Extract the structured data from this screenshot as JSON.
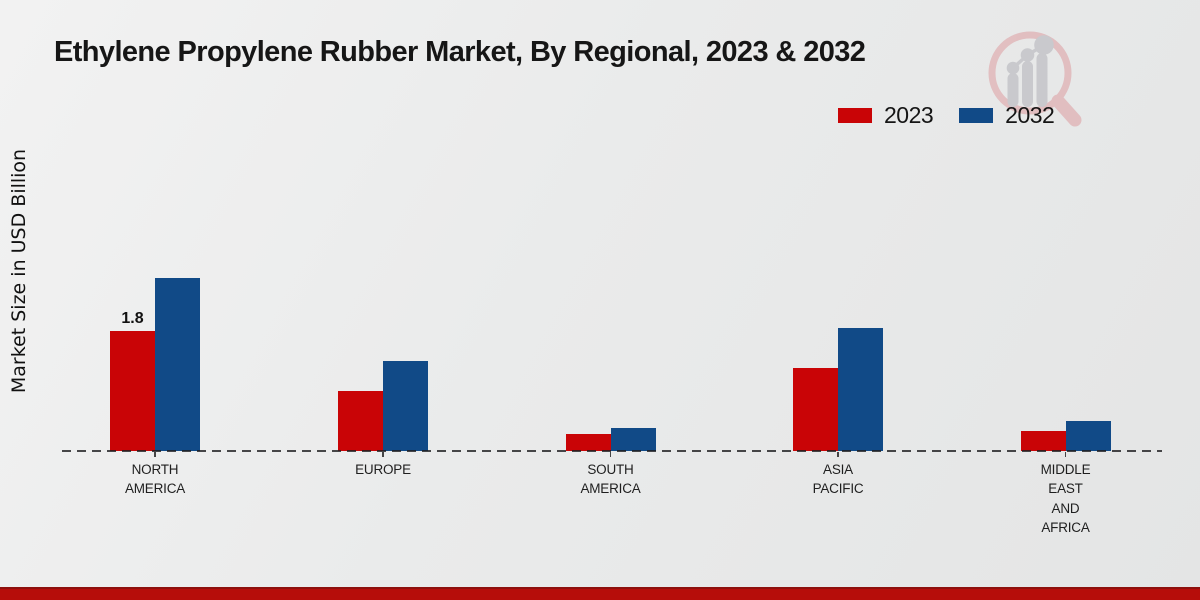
{
  "chart_data": {
    "type": "bar",
    "title": "Ethylene Propylene Rubber Market, By Regional, 2023 & 2032",
    "ylabel": "Market Size in USD Billion",
    "xlabel": "",
    "categories": [
      "NORTH AMERICA",
      "EUROPE",
      "SOUTH AMERICA",
      "ASIA PACIFIC",
      "MIDDLE EAST AND AFRICA"
    ],
    "series": [
      {
        "name": "2023",
        "color": "#c90406",
        "values": [
          1.8,
          0.9,
          0.25,
          1.25,
          0.3
        ]
      },
      {
        "name": "2032",
        "color": "#114a87",
        "values": [
          2.6,
          1.35,
          0.35,
          1.85,
          0.45
        ]
      }
    ],
    "data_labels": [
      {
        "series_index": 0,
        "category_index": 0,
        "text": "1.8"
      }
    ],
    "ylim": [
      0,
      3
    ],
    "gridlines": false,
    "y_axis_ticks_visible": false,
    "baseline_style": "dashed",
    "legend_position": "top-right"
  },
  "colors": {
    "series_2023": "#c90406",
    "series_2032": "#114a87",
    "footer_bar": "#b60d0a",
    "footer_bar_border": "#8e100d",
    "baseline": "#1c1c1e",
    "logo_ring": "#e0b7ba",
    "logo_gray": "#c9c9cd"
  },
  "icons": {
    "brand_logo": "magnifier-bar-chart-icon"
  }
}
